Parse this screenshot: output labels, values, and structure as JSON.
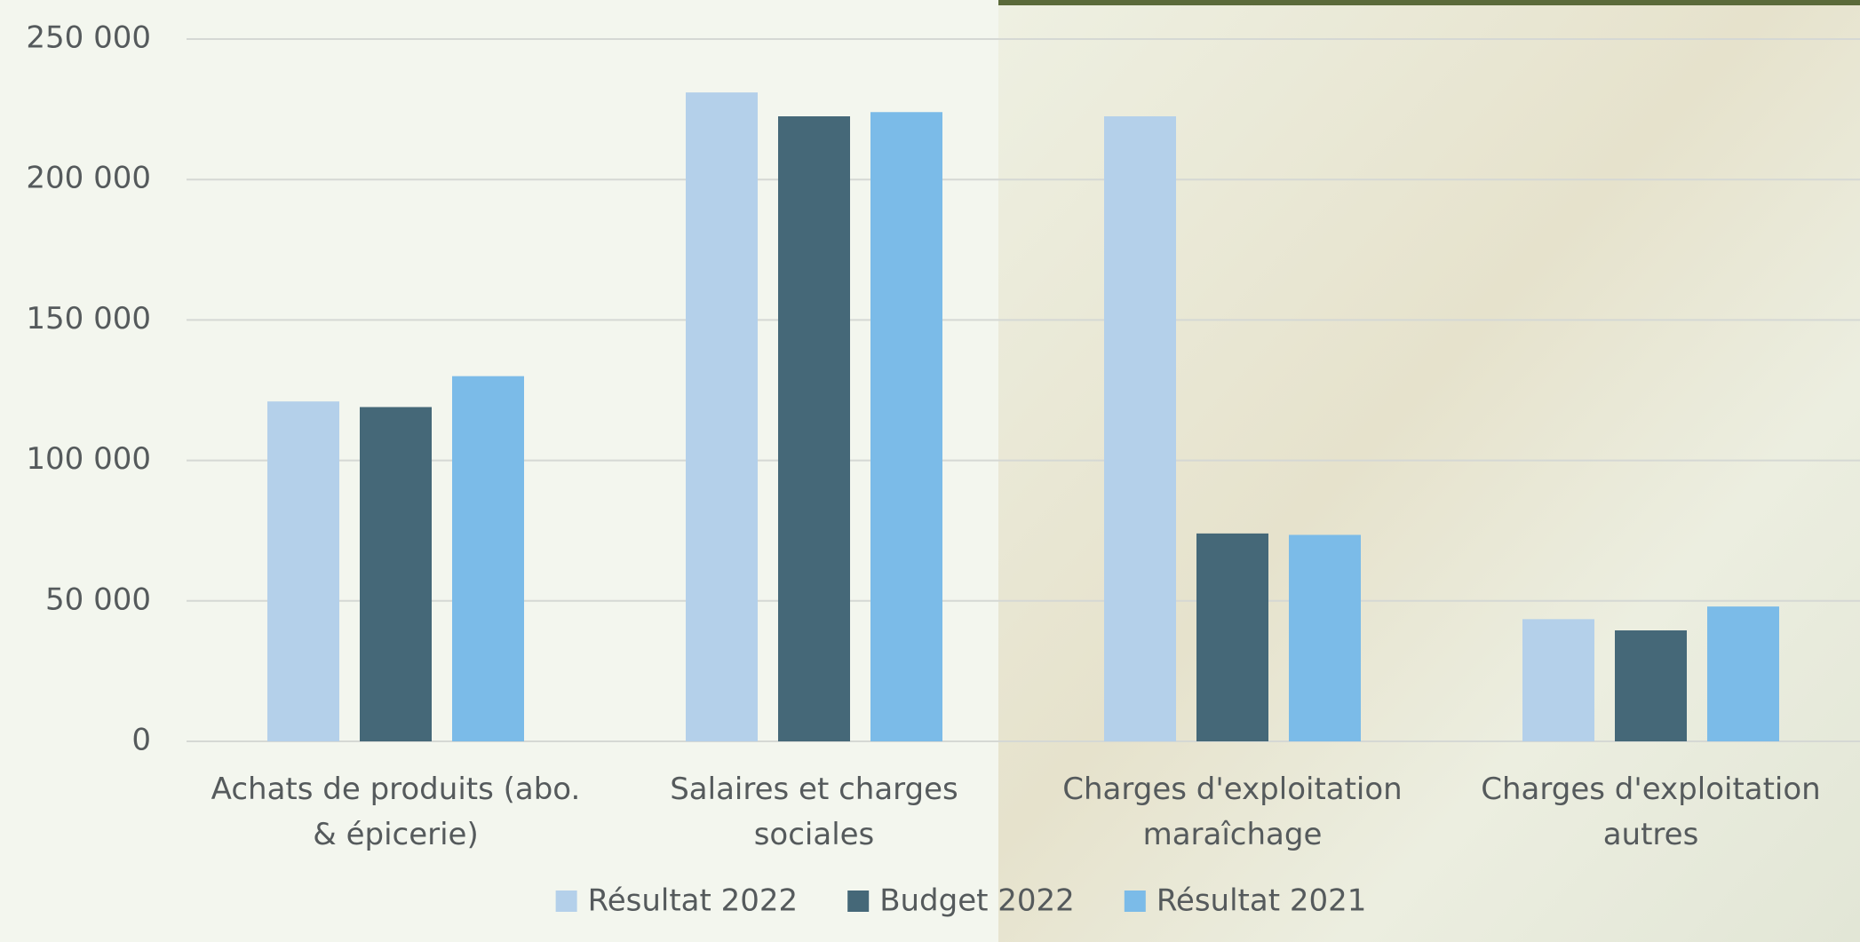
{
  "chart_data": {
    "type": "bar",
    "categories": [
      "Achats de produits (abo. & épicerie)",
      "Salaires et charges sociales",
      "Charges d'exploitation maraîchage",
      "Charges d'exploitation autres"
    ],
    "series": [
      {
        "name": "Résultat 2022",
        "color": "#b4d0ea",
        "values": [
          121000,
          231000,
          222500,
          43500
        ]
      },
      {
        "name": "Budget 2022",
        "color": "#456878",
        "values": [
          119000,
          222500,
          74000,
          39500
        ]
      },
      {
        "name": "Résultat 2021",
        "color": "#7bbbe8",
        "values": [
          130000,
          224000,
          73500,
          48000
        ]
      }
    ],
    "ylim": [
      0,
      250000
    ],
    "yticks": [
      0,
      {
        "value": 50000,
        "label": "50 000"
      },
      {
        "value": 100000,
        "label": "100 000"
      },
      {
        "value": 150000,
        "label": "150 000"
      },
      {
        "value": 200000,
        "label": "200 000"
      },
      {
        "value": 250000,
        "label": "250 000"
      }
    ],
    "grid": true,
    "legend": "bottom"
  }
}
